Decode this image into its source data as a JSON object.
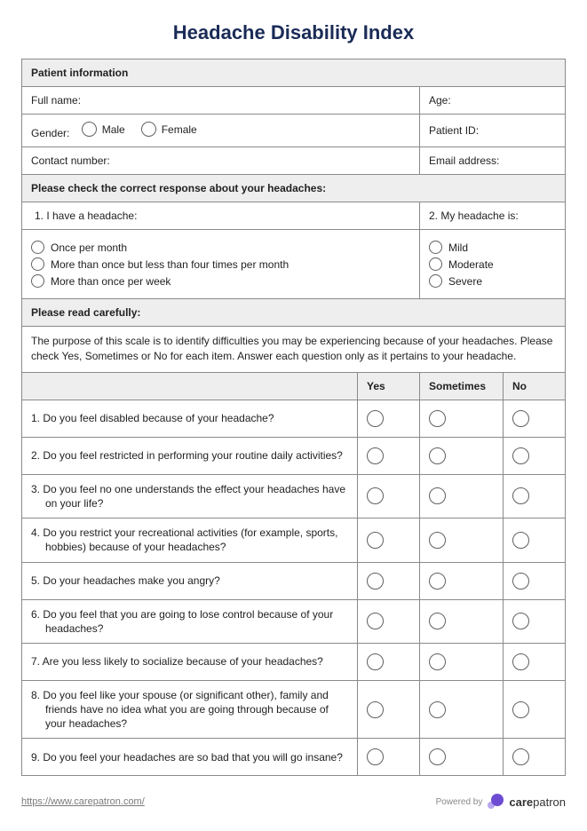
{
  "title": "Headache Disability Index",
  "colors": {
    "title": "#1a2b57",
    "border": "#8a8a8a",
    "section_bg": "#eeeeee",
    "text": "#222222",
    "radio_border": "#606060",
    "footer_text": "#7a7a7a",
    "logo_primary": "#6d4bd3",
    "logo_secondary": "#b8a6f0"
  },
  "patient_section": {
    "header": "Patient information",
    "full_name_label": "Full name:",
    "age_label": "Age:",
    "gender_label": "Gender:",
    "gender_options": {
      "male": "Male",
      "female": "Female"
    },
    "patient_id_label": "Patient ID:",
    "contact_label": "Contact number:",
    "email_label": "Email address:"
  },
  "response_section": {
    "header": "Please check the correct response about your headaches:",
    "q1_label": "1. I have a headache:",
    "q1_options": [
      "Once per month",
      "More than once but less than four times per month",
      "More than once per week"
    ],
    "q2_label": "2. My headache is:",
    "q2_options": [
      "Mild",
      "Moderate",
      "Severe"
    ]
  },
  "instructions_section": {
    "header": "Please read carefully:",
    "text": "The purpose of this scale is to identify difficulties you may be experiencing because of your headaches. Please check Yes, Sometimes or No for each item. Answer each question only as it pertains to your headache."
  },
  "columns": {
    "yes": "Yes",
    "sometimes": "Sometimes",
    "no": "No"
  },
  "questions": [
    "1. Do you feel disabled because of your headache?",
    "2. Do you feel restricted in performing your routine daily activities?",
    "3. Do you feel no one understands the effect your headaches have on your life?",
    "4. Do you restrict your recreational activities (for example, sports, hobbies) because of your headaches?",
    "5. Do your headaches make you angry?",
    "6. Do you feel that you are going to lose control because of your headaches?",
    "7. Are you less likely to socialize because of your headaches?",
    "8. Do you feel like your spouse (or significant other), family and friends have no idea what you are going through because of your headaches?",
    "9. Do you feel your headaches are so bad that you will go insane?"
  ],
  "footer": {
    "link": "https://www.carepatron.com/",
    "powered_by": "Powered by",
    "brand_bold": "care",
    "brand_rest": "patron"
  }
}
